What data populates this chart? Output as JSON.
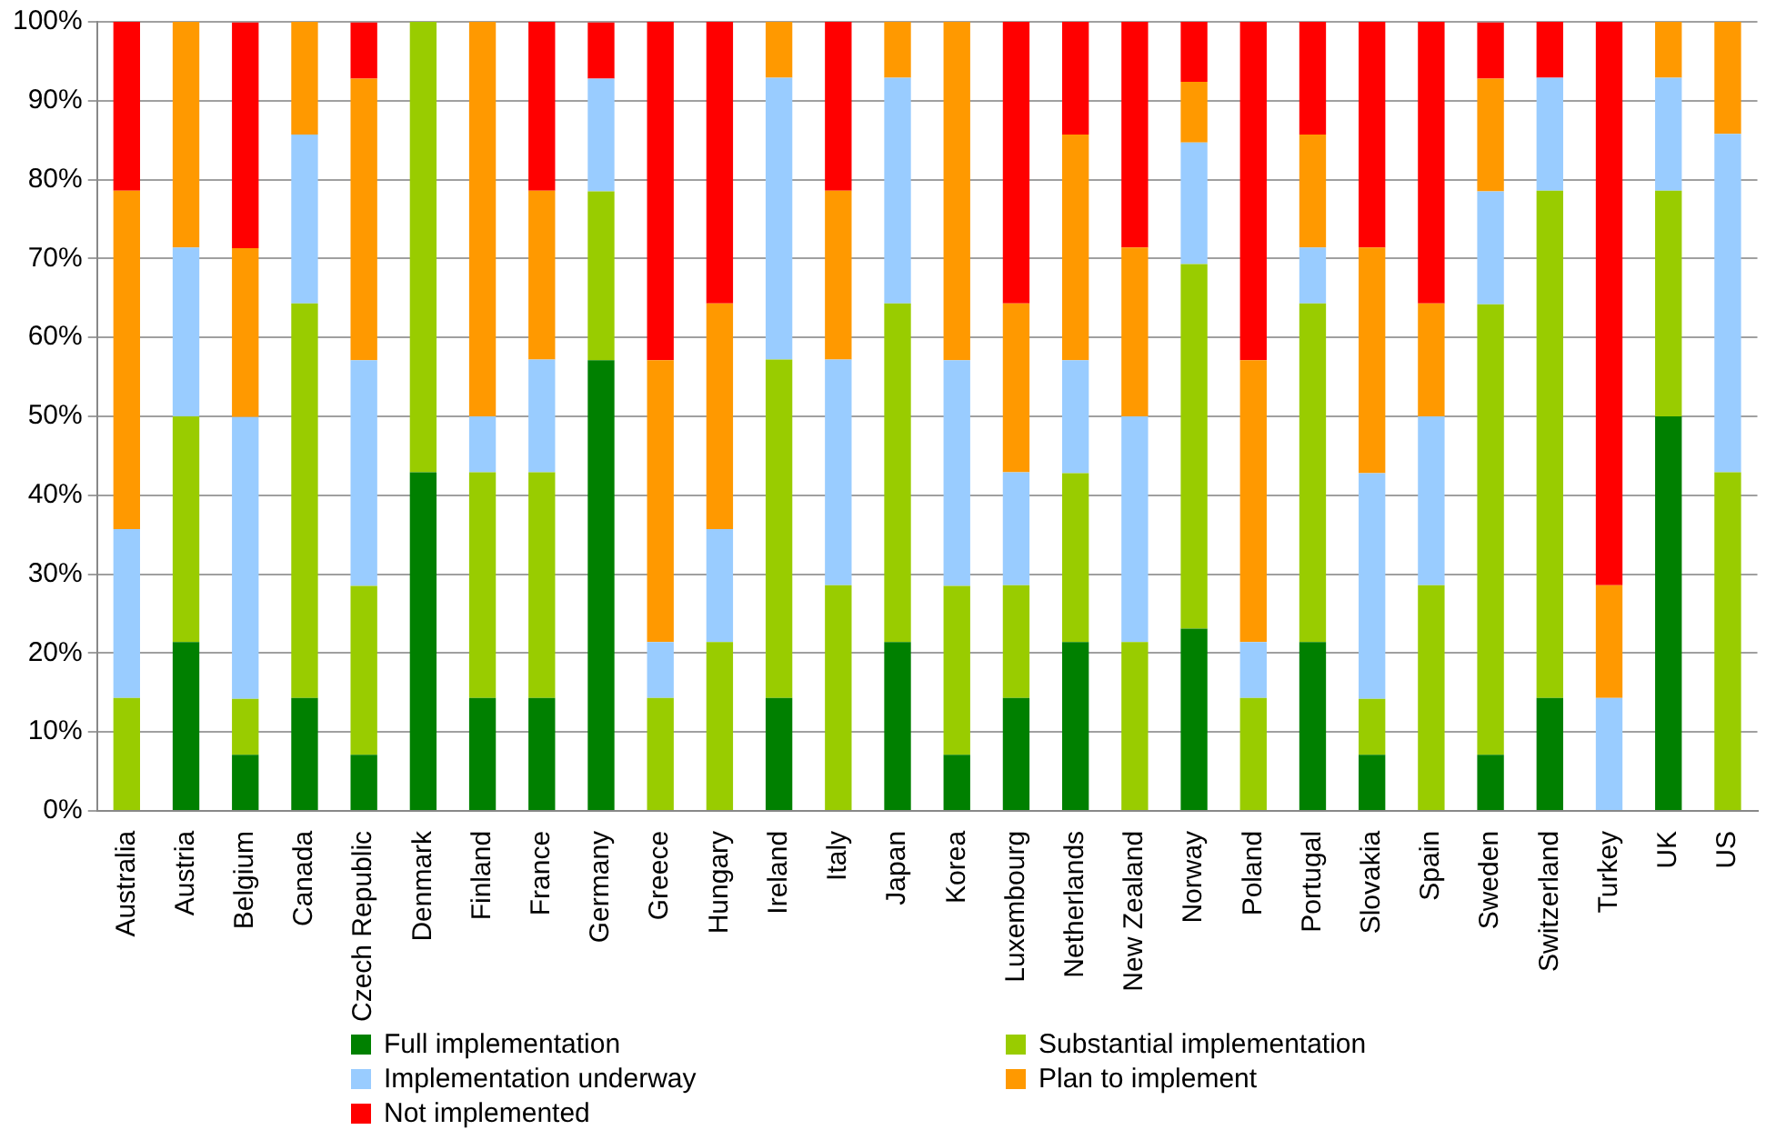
{
  "chart_data": {
    "type": "bar",
    "stacked": true,
    "grid": "y",
    "legend": "bottom",
    "categories": [
      "Australia",
      "Austria",
      "Belgium",
      "Canada",
      "Czech Republic",
      "Denmark",
      "Finland",
      "France",
      "Germany",
      "Greece",
      "Hungary",
      "Ireland",
      "Italy",
      "Japan",
      "Korea",
      "Luxembourg",
      "Netherlands",
      "New Zealand",
      "Norway",
      "Poland",
      "Portugal",
      "Slovakia",
      "Spain",
      "Sweden",
      "Switzerland",
      "Turkey",
      "UK",
      "US"
    ],
    "ylim": [
      0,
      100
    ],
    "yticks": [
      {
        "value": 0,
        "label": "0%"
      },
      {
        "value": 10,
        "label": "10%"
      },
      {
        "value": 20,
        "label": "20%"
      },
      {
        "value": 30,
        "label": "30%"
      },
      {
        "value": 40,
        "label": "40%"
      },
      {
        "value": 50,
        "label": "50%"
      },
      {
        "value": 60,
        "label": "60%"
      },
      {
        "value": 70,
        "label": "70%"
      },
      {
        "value": 80,
        "label": "80%"
      },
      {
        "value": 90,
        "label": "90%"
      },
      {
        "value": 100,
        "label": "100%"
      }
    ],
    "series": [
      {
        "name": "Full implementation",
        "color": "#008000",
        "values": [
          0,
          21.4,
          7.1,
          14.3,
          7.1,
          42.9,
          14.3,
          14.3,
          57.1,
          0,
          0,
          14.3,
          0,
          21.4,
          7.1,
          14.3,
          21.4,
          0,
          23.1,
          0,
          21.4,
          7.1,
          0,
          7.1,
          14.3,
          0,
          50,
          0
        ]
      },
      {
        "name": "Substantial implementation",
        "color": "#99cc00",
        "values": [
          14.3,
          28.6,
          7.1,
          50,
          21.4,
          57.1,
          28.6,
          28.6,
          21.4,
          14.3,
          21.4,
          42.9,
          28.6,
          42.9,
          21.4,
          14.3,
          21.4,
          21.4,
          46.2,
          14.3,
          42.9,
          7.1,
          28.6,
          57.1,
          64.3,
          0,
          28.6,
          42.9
        ]
      },
      {
        "name": "Implementation underway",
        "color": "#99ccff",
        "values": [
          21.4,
          21.4,
          35.7,
          21.4,
          28.6,
          0,
          7.1,
          14.3,
          14.3,
          7.1,
          14.3,
          35.7,
          28.6,
          28.6,
          28.6,
          14.3,
          14.3,
          28.6,
          15.4,
          7.1,
          7.1,
          28.6,
          21.4,
          14.3,
          14.3,
          14.3,
          14.3,
          42.9
        ]
      },
      {
        "name": "Plan to implement",
        "color": "#ff9900",
        "values": [
          42.9,
          28.6,
          21.4,
          14.3,
          35.7,
          0,
          50,
          21.4,
          0,
          35.7,
          28.6,
          7.1,
          21.4,
          7.1,
          42.9,
          21.4,
          28.6,
          21.4,
          7.7,
          35.7,
          14.3,
          28.6,
          14.3,
          14.3,
          0,
          14.3,
          7.1,
          14.2
        ]
      },
      {
        "name": "Not implemented",
        "color": "#ff0000",
        "values": [
          21.4,
          0,
          28.6,
          0,
          7.1,
          0,
          0,
          21.4,
          7.1,
          42.9,
          35.7,
          0,
          21.4,
          0,
          0,
          35.7,
          14.3,
          28.6,
          7.6,
          42.9,
          14.3,
          28.6,
          35.7,
          7.1,
          7.1,
          71.4,
          0,
          0
        ]
      }
    ]
  }
}
